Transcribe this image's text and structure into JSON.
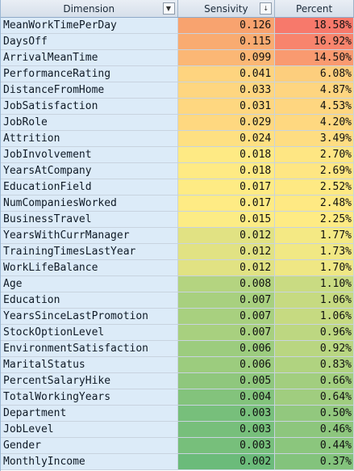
{
  "headers": {
    "dimension": "Dimension",
    "sensitivity": "Sensivity",
    "percent": "Percent"
  },
  "rows": [
    {
      "dimension": "MeanWorkTimePerDay",
      "sensitivity": "0.126",
      "percent": "18.58%",
      "sens_color": "#f8a36f",
      "pct_color": "#f7796b"
    },
    {
      "dimension": "DaysOff",
      "sensitivity": "0.115",
      "percent": "16.92%",
      "sens_color": "#f9ab71",
      "pct_color": "#f8846d"
    },
    {
      "dimension": "ArrivalMeanTime",
      "sensitivity": "0.099",
      "percent": "14.50%",
      "sens_color": "#fbb775",
      "pct_color": "#f99a70"
    },
    {
      "dimension": "PerformanceRating",
      "sensitivity": "0.041",
      "percent": "6.08%",
      "sens_color": "#fed47f",
      "pct_color": "#fdce7d"
    },
    {
      "dimension": "DistanceFromHome",
      "sensitivity": "0.033",
      "percent": "4.87%",
      "sens_color": "#fed680",
      "pct_color": "#fed580"
    },
    {
      "dimension": "JobSatisfaction",
      "sensitivity": "0.031",
      "percent": "4.53%",
      "sens_color": "#fed780",
      "pct_color": "#fed680"
    },
    {
      "dimension": "JobRole",
      "sensitivity": "0.029",
      "percent": "4.20%",
      "sens_color": "#fed880",
      "pct_color": "#fed880"
    },
    {
      "dimension": "Attrition",
      "sensitivity": "0.024",
      "percent": "3.49%",
      "sens_color": "#fee082",
      "pct_color": "#fedd82"
    },
    {
      "dimension": "JobInvolvement",
      "sensitivity": "0.018",
      "percent": "2.70%",
      "sens_color": "#feea84",
      "pct_color": "#fee683"
    },
    {
      "dimension": "YearsAtCompany",
      "sensitivity": "0.018",
      "percent": "2.69%",
      "sens_color": "#feea84",
      "pct_color": "#fee683"
    },
    {
      "dimension": "EducationField",
      "sensitivity": "0.017",
      "percent": "2.52%",
      "sens_color": "#feeb84",
      "pct_color": "#fee983"
    },
    {
      "dimension": "NumCompaniesWorked",
      "sensitivity": "0.017",
      "percent": "2.48%",
      "sens_color": "#feeb84",
      "pct_color": "#fee983"
    },
    {
      "dimension": "BusinessTravel",
      "sensitivity": "0.015",
      "percent": "2.25%",
      "sens_color": "#fcec85",
      "pct_color": "#feeb84"
    },
    {
      "dimension": "YearsWithCurrManager",
      "sensitivity": "0.012",
      "percent": "1.77%",
      "sens_color": "#e1e283",
      "pct_color": "#f4e984"
    },
    {
      "dimension": "TrainingTimesLastYear",
      "sensitivity": "0.012",
      "percent": "1.73%",
      "sens_color": "#e1e283",
      "pct_color": "#f1e884"
    },
    {
      "dimension": "WorkLifeBalance",
      "sensitivity": "0.012",
      "percent": "1.70%",
      "sens_color": "#e1e283",
      "pct_color": "#efe784"
    },
    {
      "dimension": "Age",
      "sensitivity": "0.008",
      "percent": "1.10%",
      "sens_color": "#b4d480",
      "pct_color": "#c9db82"
    },
    {
      "dimension": "Education",
      "sensitivity": "0.007",
      "percent": "1.06%",
      "sens_color": "#a8d07f",
      "pct_color": "#c6da81"
    },
    {
      "dimension": "YearsSinceLastPromotion",
      "sensitivity": "0.007",
      "percent": "1.06%",
      "sens_color": "#a8d07f",
      "pct_color": "#c6da81"
    },
    {
      "dimension": "StockOptionLevel",
      "sensitivity": "0.007",
      "percent": "0.96%",
      "sens_color": "#a8d07f",
      "pct_color": "#bdd781"
    },
    {
      "dimension": "EnvironmentSatisfaction",
      "sensitivity": "0.006",
      "percent": "0.92%",
      "sens_color": "#9ccc7e",
      "pct_color": "#b9d681"
    },
    {
      "dimension": "MaritalStatus",
      "sensitivity": "0.006",
      "percent": "0.83%",
      "sens_color": "#9ccc7e",
      "pct_color": "#b0d380"
    },
    {
      "dimension": "PercentSalaryHike",
      "sensitivity": "0.005",
      "percent": "0.66%",
      "sens_color": "#8fc77d",
      "pct_color": "#a2ce7f"
    },
    {
      "dimension": "TotalWorkingYears",
      "sensitivity": "0.004",
      "percent": "0.64%",
      "sens_color": "#83c37c",
      "pct_color": "#a0cd7f"
    },
    {
      "dimension": "Department",
      "sensitivity": "0.003",
      "percent": "0.50%",
      "sens_color": "#77bf7b",
      "pct_color": "#92c87e"
    },
    {
      "dimension": "JobLevel",
      "sensitivity": "0.003",
      "percent": "0.46%",
      "sens_color": "#77bf7b",
      "pct_color": "#8dc67d"
    },
    {
      "dimension": "Gender",
      "sensitivity": "0.003",
      "percent": "0.44%",
      "sens_color": "#77bf7b",
      "pct_color": "#8bc67d"
    },
    {
      "dimension": "MonthlyIncome",
      "sensitivity": "0.002",
      "percent": "0.37%",
      "sens_color": "#6bbb7a",
      "pct_color": "#83c37c"
    }
  ],
  "icons": {
    "filter_dropdown": "chevron-down-icon",
    "sort_filter_active": "sort-descending-filter-icon"
  }
}
